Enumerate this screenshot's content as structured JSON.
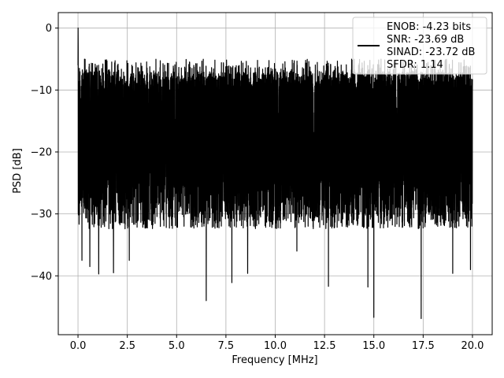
{
  "chart_data": {
    "type": "line",
    "xlabel": "Frequency [MHz]",
    "ylabel": "PSD [dB]",
    "xlim": [
      -1.0,
      21.0
    ],
    "ylim": [
      -49.5,
      2.5
    ],
    "x_ticks": [
      0.0,
      2.5,
      5.0,
      7.5,
      10.0,
      12.5,
      15.0,
      17.5,
      20.0
    ],
    "x_tick_labels": [
      "0.0",
      "2.5",
      "5.0",
      "7.5",
      "10.0",
      "12.5",
      "15.0",
      "17.5",
      "20.0"
    ],
    "y_ticks": [
      0,
      -10,
      -20,
      -30,
      -40
    ],
    "y_tick_labels": [
      "0",
      "−10",
      "−20",
      "−30",
      "−40"
    ],
    "grid": true,
    "legend_position": "top-right",
    "line_color": "#000000",
    "legend": {
      "lines": [
        "ENOB: -4.23 bits",
        "SNR: -23.69 dB",
        "SINAD: -23.72 dB",
        "SFDR: 1.14"
      ]
    },
    "series": [
      {
        "x_range": [
          0.0,
          20.0
        ],
        "points": 4000,
        "description_values": {
          "peak": 0.0,
          "upper_envelope_typical": -7.0,
          "lower_envelope_typical": -30.0,
          "deep_minima": [
            [
              0.2,
              -37.5
            ],
            [
              0.6,
              -38.5
            ],
            [
              1.05,
              -39.7
            ],
            [
              1.8,
              -39.5
            ],
            [
              2.6,
              -37.5
            ],
            [
              6.5,
              -44.0
            ],
            [
              7.8,
              -41.1
            ],
            [
              8.6,
              -39.6
            ],
            [
              11.1,
              -36.0
            ],
            [
              12.7,
              -41.7
            ],
            [
              14.7,
              -41.8
            ],
            [
              15.0,
              -46.7
            ],
            [
              17.4,
              -46.9
            ],
            [
              19.0,
              -39.6
            ],
            [
              19.9,
              -39.0
            ]
          ]
        }
      }
    ]
  }
}
